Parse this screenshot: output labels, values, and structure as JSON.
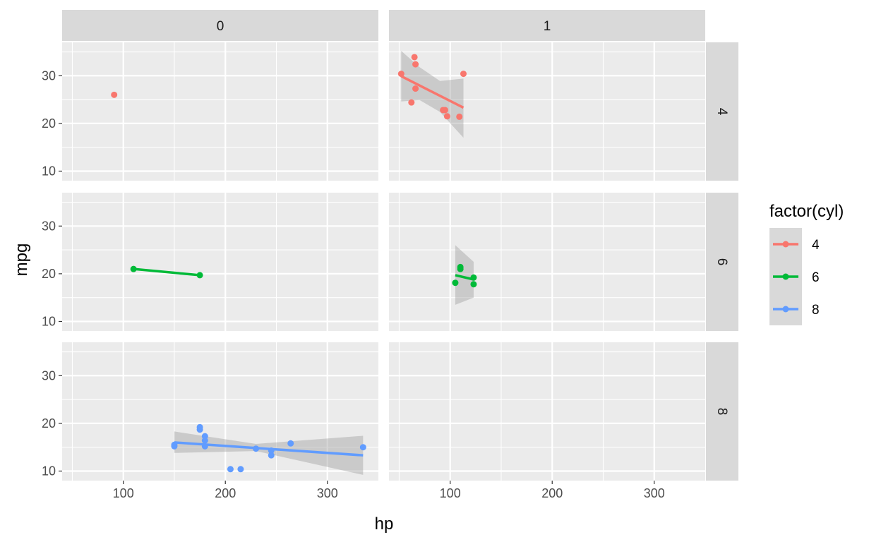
{
  "chart_data": {
    "type": "scatter",
    "facet_cols": [
      "0",
      "1"
    ],
    "facet_rows": [
      "4",
      "6",
      "8"
    ],
    "xlabel": "hp",
    "ylabel": "mpg",
    "xlim": [
      40,
      350
    ],
    "ylim": [
      8,
      37
    ],
    "x_ticks": [
      100,
      200,
      300
    ],
    "y_ticks": [
      10,
      20,
      30
    ],
    "grid": true,
    "legend": {
      "title": "factor(cyl)",
      "position": "right",
      "items": [
        {
          "label": "4",
          "color": "#F8766D"
        },
        {
          "label": "6",
          "color": "#00BA38"
        },
        {
          "label": "8",
          "color": "#619CFF"
        }
      ]
    },
    "panels": [
      {
        "col": "0",
        "row": "4",
        "color": "#F8766D",
        "points": [
          [
            91,
            26.0
          ]
        ],
        "fit": null
      },
      {
        "col": "1",
        "row": "4",
        "color": "#F8766D",
        "points": [
          [
            52,
            30.4
          ],
          [
            62,
            24.4
          ],
          [
            65,
            33.9
          ],
          [
            66,
            32.4
          ],
          [
            66,
            27.3
          ],
          [
            93,
            22.8
          ],
          [
            95,
            22.8
          ],
          [
            97,
            21.5
          ],
          [
            109,
            21.4
          ],
          [
            113,
            30.4
          ]
        ],
        "fit": {
          "x": [
            52,
            113
          ],
          "y": [
            29.9,
            23.3
          ]
        },
        "band": {
          "x": [
            52,
            70,
            90,
            113
          ],
          "lower": [
            24.6,
            24.9,
            22.4,
            17.0
          ],
          "upper": [
            35.2,
            31.8,
            28.9,
            29.4
          ]
        }
      },
      {
        "col": "0",
        "row": "6",
        "color": "#00BA38",
        "points": [
          [
            110,
            21.0
          ],
          [
            175,
            19.7
          ]
        ],
        "fit": {
          "x": [
            110,
            175
          ],
          "y": [
            21.0,
            19.7
          ]
        }
      },
      {
        "col": "1",
        "row": "6",
        "color": "#00BA38",
        "points": [
          [
            105,
            18.1
          ],
          [
            110,
            21.4
          ],
          [
            110,
            21.0
          ],
          [
            123,
            19.2
          ],
          [
            123,
            17.8
          ]
        ],
        "fit": {
          "x": [
            105,
            123
          ],
          "y": [
            19.7,
            18.8
          ]
        },
        "band": {
          "x": [
            105,
            123
          ],
          "lower": [
            13.5,
            15.0
          ],
          "upper": [
            26.0,
            22.5
          ]
        }
      },
      {
        "col": "0",
        "row": "8",
        "color": "#619CFF",
        "points": [
          [
            150,
            15.5
          ],
          [
            150,
            15.2
          ],
          [
            175,
            18.7
          ],
          [
            175,
            19.2
          ],
          [
            180,
            16.4
          ],
          [
            180,
            17.3
          ],
          [
            180,
            15.2
          ],
          [
            205,
            10.4
          ],
          [
            215,
            10.4
          ],
          [
            230,
            14.7
          ],
          [
            245,
            14.3
          ],
          [
            245,
            13.3
          ],
          [
            264,
            15.8
          ],
          [
            335,
            15.0
          ]
        ],
        "fit": {
          "x": [
            150,
            335
          ],
          "y": [
            16.0,
            13.3
          ]
        },
        "band": {
          "x": [
            150,
            230,
            335
          ],
          "lower": [
            13.8,
            14.2,
            9.2
          ],
          "upper": [
            18.3,
            15.7,
            17.4
          ]
        }
      },
      {
        "col": "1",
        "row": "8",
        "color": "#619CFF",
        "points": [],
        "fit": null
      }
    ]
  }
}
